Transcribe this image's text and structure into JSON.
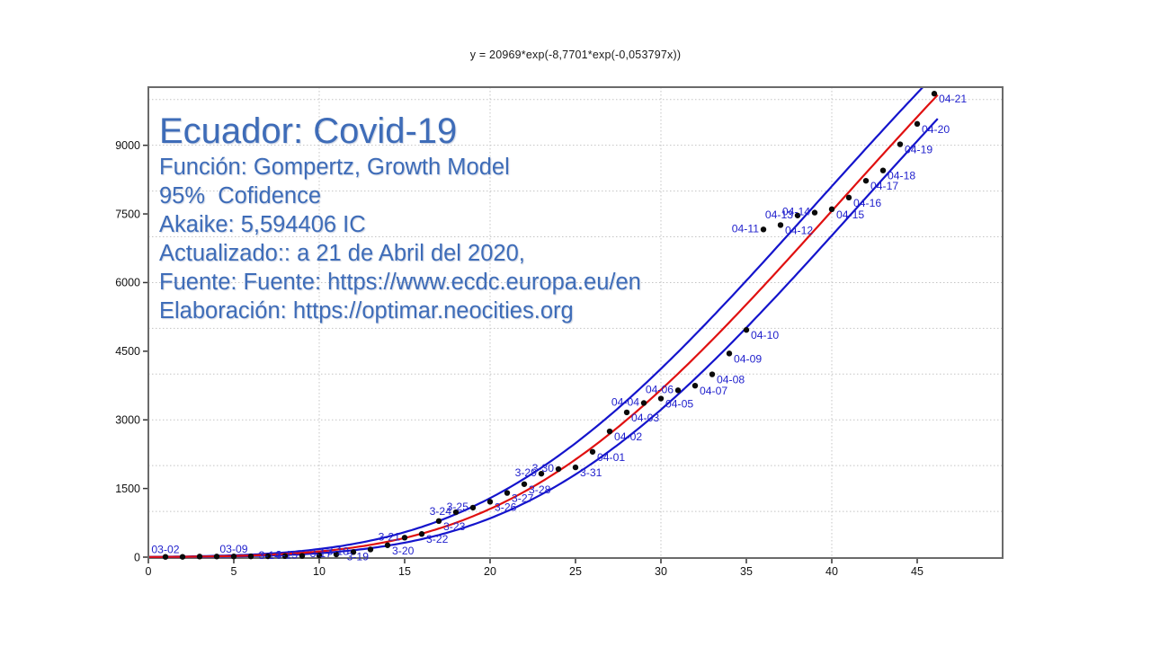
{
  "info_panel": {
    "title": "Ecuador: Covid-19",
    "color": "#3E6CB8",
    "lines": [
      "Función: Gompertz, Growth Model",
      "95%  Cofidence",
      "Akaike: 5,594406 IC",
      "Actualizado:: a 21 de Abril del 2020,",
      "Fuente: Fuente: https://www.ecdc.europa.eu/en",
      "Elaboración: https://optimar.neocities.org"
    ]
  },
  "chart_data": {
    "type": "scatter",
    "title": "y = 20969*exp(-8,7701*exp(-0,053797x))",
    "xlabel": "",
    "ylabel": "",
    "xlim": [
      0,
      50
    ],
    "ylim": [
      0,
      10270
    ],
    "x_ticks": [
      0,
      5,
      10,
      15,
      20,
      25,
      30,
      35,
      40,
      45
    ],
    "y_ticks": [
      0,
      1500,
      3000,
      4500,
      6000,
      7500,
      9000
    ],
    "grid": {
      "x_step": 10,
      "y_step": 1000,
      "style": "dotted",
      "color": "#c4c4c4"
    },
    "fit": {
      "model": "Gompertz, Growth Model",
      "confidence": "95%",
      "a": 20969,
      "b": 8.7701,
      "c": 0.053797,
      "band_dx": 1.3,
      "x_end": 46.3,
      "curve_color": "#e01010",
      "band_color": "#1414cc"
    },
    "point_color": "#0a0a0a",
    "label_color": "#1f1fcc",
    "axis_color": "#6a6a6a",
    "tick_color": "#333333",
    "points": [
      {
        "x": 1,
        "v": 6,
        "d": "03-02",
        "p": "a"
      },
      {
        "x": 2,
        "v": 7
      },
      {
        "x": 3,
        "v": 13
      },
      {
        "x": 4,
        "v": 14
      },
      {
        "x": 5,
        "v": 15,
        "d": "03-09",
        "p": "a"
      },
      {
        "x": 6,
        "v": 17
      },
      {
        "x": 7,
        "v": 19
      },
      {
        "x": 8,
        "v": 23,
        "d": "3-14",
        "p": "l"
      },
      {
        "x": 9,
        "v": 28,
        "d": "3-15",
        "p": "l"
      },
      {
        "x": 10,
        "v": 37
      },
      {
        "x": 11,
        "v": 58,
        "d": "3-17",
        "p": "l"
      },
      {
        "x": 12,
        "v": 111,
        "d": "3-18",
        "p": "l"
      },
      {
        "x": 13,
        "v": 168,
        "d": "3-19",
        "p": "bl"
      },
      {
        "x": 14,
        "v": 260,
        "d": "3-20",
        "p": "r"
      },
      {
        "x": 15,
        "v": 426,
        "d": "3-21",
        "p": "l"
      },
      {
        "x": 16,
        "v": 506,
        "d": "3-22",
        "p": "r"
      },
      {
        "x": 17,
        "v": 789,
        "d": "3-23",
        "p": "r"
      },
      {
        "x": 18,
        "v": 981,
        "d": "3-24",
        "p": "l"
      },
      {
        "x": 19,
        "v": 1082,
        "d": "3-25",
        "p": "l"
      },
      {
        "x": 20,
        "v": 1211,
        "d": "3-26",
        "p": "r"
      },
      {
        "x": 21,
        "v": 1403,
        "d": "3-27",
        "p": "r"
      },
      {
        "x": 22,
        "v": 1595,
        "d": "3-28",
        "p": "r"
      },
      {
        "x": 23,
        "v": 1823,
        "d": "3-29",
        "p": "l"
      },
      {
        "x": 24,
        "v": 1924,
        "d": "3-30",
        "p": "l"
      },
      {
        "x": 25,
        "v": 1962,
        "d": "3-31",
        "p": "r"
      },
      {
        "x": 26,
        "v": 2302,
        "d": "04-01",
        "p": "r"
      },
      {
        "x": 27,
        "v": 2748,
        "d": "04-02",
        "p": "r"
      },
      {
        "x": 28,
        "v": 3163,
        "d": "04-03",
        "p": "r"
      },
      {
        "x": 29,
        "v": 3368,
        "d": "04-04",
        "p": "l"
      },
      {
        "x": 30,
        "v": 3465,
        "d": "04-05",
        "p": "r"
      },
      {
        "x": 31,
        "v": 3646,
        "d": "04-06",
        "p": "l"
      },
      {
        "x": 32,
        "v": 3747,
        "d": "04-07",
        "p": "r"
      },
      {
        "x": 33,
        "v": 3995,
        "d": "04-08",
        "p": "r"
      },
      {
        "x": 34,
        "v": 4450,
        "d": "04-09",
        "p": "r"
      },
      {
        "x": 35,
        "v": 4965,
        "d": "04-10",
        "p": "r"
      },
      {
        "x": 36,
        "v": 7161,
        "d": "04-11",
        "p": "l"
      },
      {
        "x": 37,
        "v": 7257,
        "d": "04-12",
        "p": "r"
      },
      {
        "x": 38,
        "v": 7466,
        "d": "04-13",
        "p": "l"
      },
      {
        "x": 39,
        "v": 7529,
        "d": "04-14",
        "p": "l"
      },
      {
        "x": 40,
        "v": 7603,
        "d": "04-15",
        "p": "r"
      },
      {
        "x": 41,
        "v": 7858,
        "d": "04-16",
        "p": "r"
      },
      {
        "x": 42,
        "v": 8225,
        "d": "04-17",
        "p": "r"
      },
      {
        "x": 43,
        "v": 8450,
        "d": "04-18",
        "p": "r"
      },
      {
        "x": 44,
        "v": 9022,
        "d": "04-19",
        "p": "r"
      },
      {
        "x": 45,
        "v": 9468,
        "d": "04-20",
        "p": "r"
      },
      {
        "x": 46,
        "v": 10128,
        "d": "04-21",
        "p": "r"
      }
    ]
  }
}
